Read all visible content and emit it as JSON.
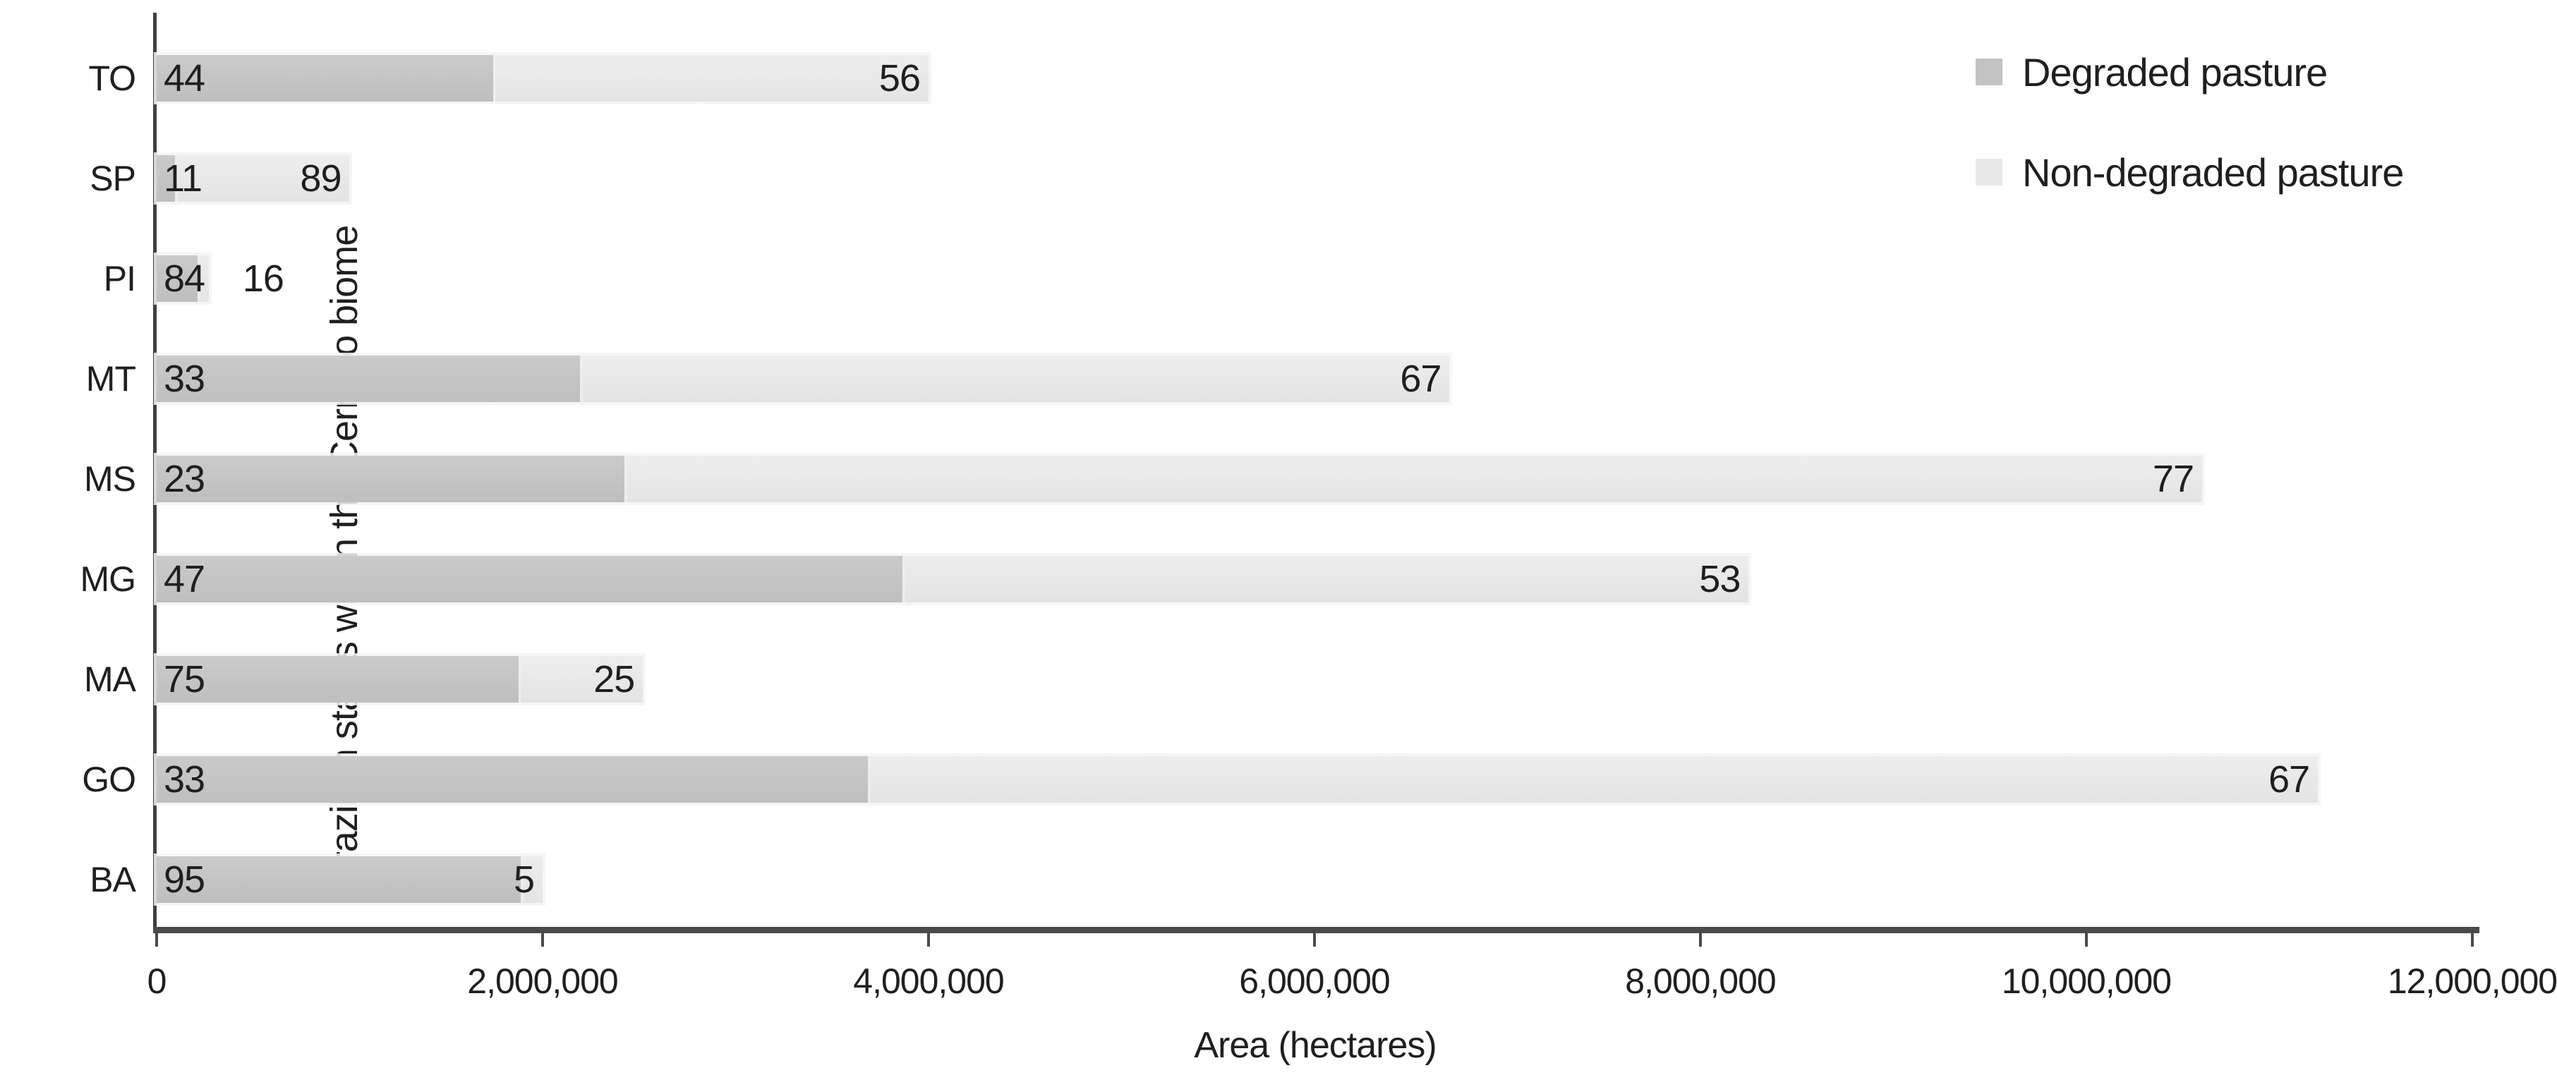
{
  "chart_data": {
    "type": "bar",
    "orientation": "horizontal-stacked",
    "title": "",
    "xlabel": "Area (hectares)",
    "ylabel": "Brazilian states within the Cerrado biome",
    "xlim": [
      0,
      12000000
    ],
    "xticks": [
      {
        "value": 0,
        "label": "0"
      },
      {
        "value": 2000000,
        "label": "2,000,000"
      },
      {
        "value": 4000000,
        "label": "4,000,000"
      },
      {
        "value": 6000000,
        "label": "6,000,000"
      },
      {
        "value": 8000000,
        "label": "8,000,000"
      },
      {
        "value": 10000000,
        "label": "10,000,000"
      },
      {
        "value": 12000000,
        "label": "12,000,000"
      }
    ],
    "grid": false,
    "legend_position": "top-right",
    "categories": [
      "TO",
      "SP",
      "PI",
      "MT",
      "MS",
      "MG",
      "MA",
      "GO",
      "BA"
    ],
    "series": [
      {
        "name": "Degraded pasture",
        "color": "#c3c3c3",
        "values": [
          1760000,
          110000,
          227000,
          2210000,
          2440000,
          3880000,
          1890000,
          3700000,
          1900000
        ],
        "pct_labels": [
          "44",
          "11",
          "84",
          "33",
          "23",
          "47",
          "75",
          "33",
          "95"
        ]
      },
      {
        "name": "Non-degraded pasture",
        "color": "#e8e8e8",
        "values": [
          2240000,
          890000,
          43000,
          4490000,
          8160000,
          4370000,
          630000,
          7500000,
          100000
        ],
        "pct_labels": [
          "56",
          "89",
          "16",
          "67",
          "77",
          "53",
          "25",
          "67",
          "5"
        ],
        "label_placement": [
          "inside",
          "inside",
          "outside",
          "inside",
          "inside",
          "inside",
          "inside",
          "inside",
          "inside"
        ]
      }
    ]
  }
}
